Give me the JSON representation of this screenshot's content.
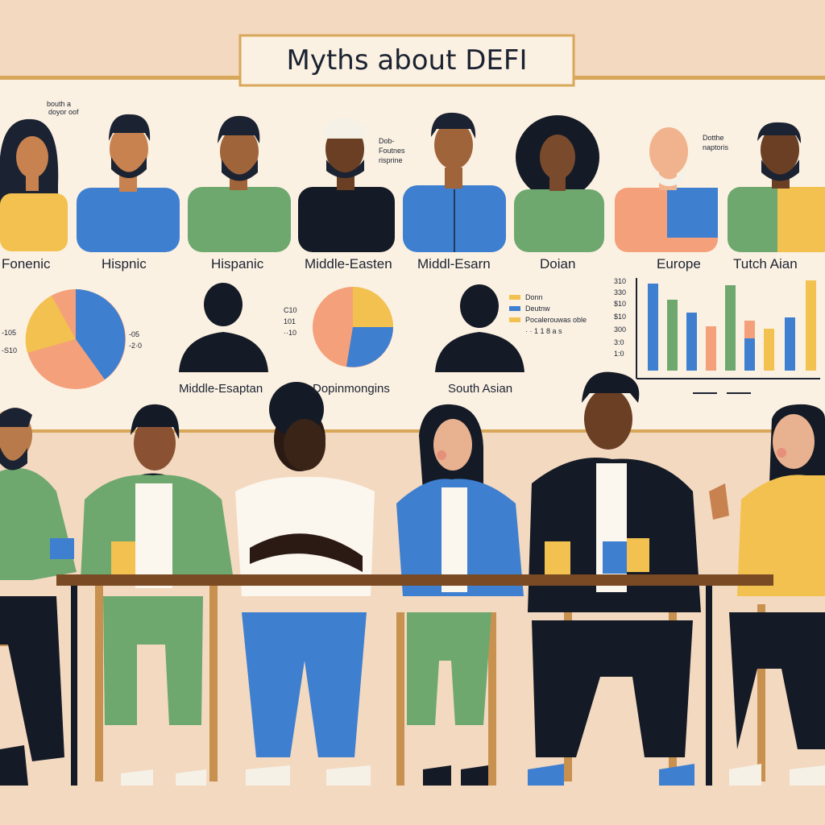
{
  "banner": {
    "title": "Myths about DEFI",
    "top_notes": [
      "bouth a",
      "doyor oof",
      "Dob-",
      "Foutnes",
      "risprine",
      "Dotthe",
      "naptoris"
    ]
  },
  "portrait_row": {
    "labels": [
      "Fonenic",
      "Hispnic",
      "Hispanic",
      "Middle-Easten",
      "Middl-Esarn",
      "Doian",
      "Europe",
      "Tutch Aian"
    ]
  },
  "info_row": {
    "silhouette_labels": [
      "Middle-Esaptan",
      "Dopinmongins",
      "South Asian"
    ],
    "pie_left_ticks": [
      "-05",
      "-2·0",
      "-105",
      "-S10"
    ],
    "pie_mid_ticks": [
      "C10",
      "101",
      "··10"
    ],
    "legend_items": [
      "Donn",
      "Deutnw",
      "Pocalerouwas oble"
    ],
    "legend_foot": "· · 1 1 8 a s",
    "bar_chart_ticks": [
      "310",
      "330",
      "$10",
      "$10",
      "300",
      "3:0",
      "1:0"
    ]
  },
  "colors": {
    "wall": "#f3d9c0",
    "banner": "#fbf1e2",
    "banner_border": "#d8a75a",
    "blue": "#3e7fd0",
    "green": "#6ea86f",
    "yellow": "#f2c14f",
    "salmon": "#f4a07a",
    "navy": "#1b2231",
    "table": "#7a4a24"
  }
}
